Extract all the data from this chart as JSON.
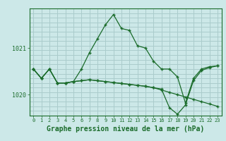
{
  "background_color": "#cce8e8",
  "grid_color": "#aacccc",
  "line_color": "#1a6b2a",
  "marker": "+",
  "xlabel": "Graphe pression niveau de la mer (hPa)",
  "xlabel_fontsize": 7,
  "tick_fontsize": 6,
  "yticks": [
    1020,
    1021
  ],
  "ylim": [
    1019.55,
    1021.85
  ],
  "xlim": [
    -0.5,
    23.5
  ],
  "series": [
    [
      1020.55,
      1020.35,
      1020.55,
      1020.25,
      1020.25,
      1020.28,
      1020.55,
      1020.9,
      1021.2,
      1021.5,
      1021.72,
      1021.42,
      1021.38,
      1021.05,
      1021.0,
      1020.72,
      1020.55,
      1020.55,
      1020.38,
      1019.82,
      1020.35,
      1020.55,
      1020.6,
      1020.62
    ],
    [
      1020.55,
      1020.35,
      1020.55,
      1020.25,
      1020.25,
      1020.28,
      1020.3,
      1020.32,
      1020.3,
      1020.28,
      1020.26,
      1020.24,
      1020.22,
      1020.2,
      1020.18,
      1020.15,
      1020.1,
      1020.05,
      1020.0,
      1019.95,
      1019.9,
      1019.85,
      1019.8,
      1019.75
    ],
    [
      1020.55,
      1020.35,
      1020.55,
      1020.25,
      1020.25,
      1020.28,
      1020.3,
      1020.32,
      1020.3,
      1020.28,
      1020.26,
      1020.24,
      1020.22,
      1020.2,
      1020.18,
      1020.15,
      1020.12,
      1019.72,
      1019.58,
      1019.78,
      1020.3,
      1020.52,
      1020.58,
      1020.62
    ]
  ]
}
